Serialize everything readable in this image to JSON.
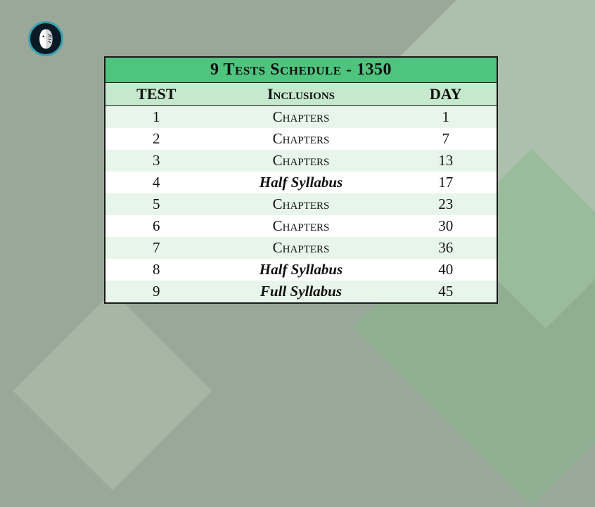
{
  "background_color": "#9aa89a",
  "accent_diamond_colors": [
    "#bed4bd",
    "#86b58a"
  ],
  "table": {
    "title": "9 Tests Schedule - 1350",
    "title_bg": "#4fc47e",
    "header_bg": "#c6e9ce",
    "row_even_bg": "#e8f5ea",
    "row_odd_bg": "#ffffff",
    "border_color": "#1a1a1a",
    "font_family": "Georgia serif small-caps",
    "title_fontsize": 24,
    "header_fontsize": 22,
    "row_fontsize": 21,
    "columns": {
      "test": "TEST",
      "inclusions": "Inclusions",
      "day": "DAY"
    },
    "rows": [
      {
        "test": "1",
        "inclusions": "Chapters",
        "day": "1",
        "emphasis": false
      },
      {
        "test": "2",
        "inclusions": "Chapters",
        "day": "7",
        "emphasis": false
      },
      {
        "test": "3",
        "inclusions": "Chapters",
        "day": "13",
        "emphasis": false
      },
      {
        "test": "4",
        "inclusions": "Half Syllabus",
        "day": "17",
        "emphasis": true
      },
      {
        "test": "5",
        "inclusions": "Chapters",
        "day": "23",
        "emphasis": false
      },
      {
        "test": "6",
        "inclusions": "Chapters",
        "day": "30",
        "emphasis": false
      },
      {
        "test": "7",
        "inclusions": "Chapters",
        "day": "36",
        "emphasis": false
      },
      {
        "test": "8",
        "inclusions": "Half Syllabus",
        "day": "40",
        "emphasis": true
      },
      {
        "test": "9",
        "inclusions": "Full Syllabus",
        "day": "45",
        "emphasis": true
      }
    ]
  }
}
